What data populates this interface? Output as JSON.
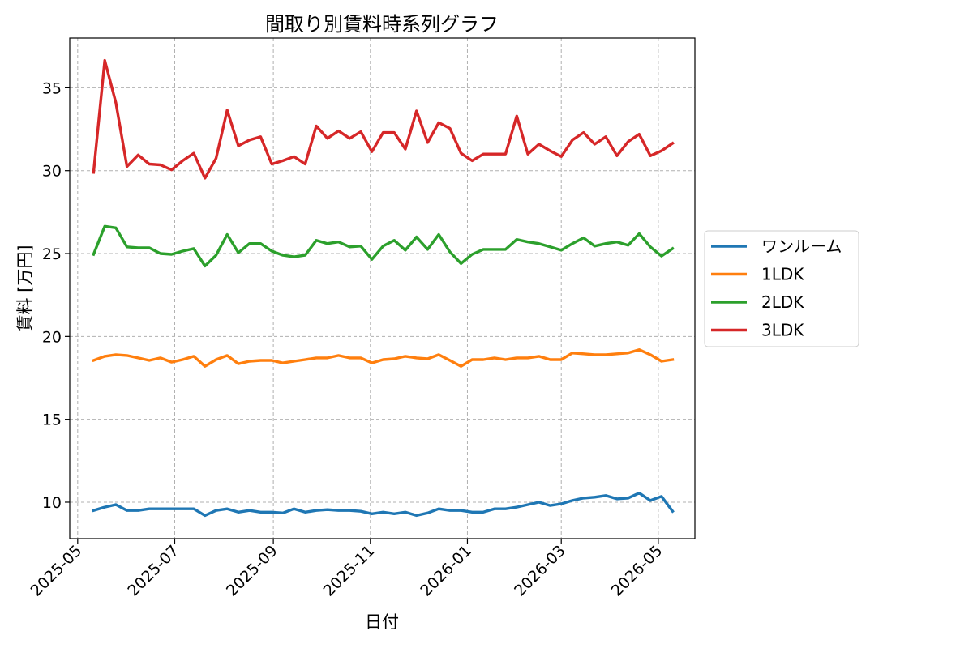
{
  "chart_data": {
    "type": "line",
    "title": "間取り別賃料時系列グラフ",
    "xlabel": "日付",
    "ylabel": "賃料 [万円]",
    "x_start": "2025-05-11",
    "x_step_days": 7,
    "xlim": [
      "2025-04-26",
      "2026-05-24"
    ],
    "ylim": [
      7.8,
      38.0
    ],
    "x_ticks": [
      "2025-05-01",
      "2025-07-01",
      "2025-09-01",
      "2025-11-01",
      "2026-01-01",
      "2026-03-01",
      "2026-05-01"
    ],
    "x_tick_labels": [
      "2025-05",
      "2025-07",
      "2025-09",
      "2025-11",
      "2026-01",
      "2026-03",
      "2026-05"
    ],
    "y_ticks": [
      10,
      15,
      20,
      25,
      30,
      35
    ],
    "y_tick_labels": [
      "10",
      "15",
      "20",
      "25",
      "30",
      "35"
    ],
    "grid": true,
    "legend_position": "right-outside",
    "series": [
      {
        "name": "ワンルーム",
        "color": "#1f77b4",
        "values": [
          9.5,
          9.7,
          9.85,
          9.5,
          9.5,
          9.6,
          9.6,
          9.6,
          9.6,
          9.6,
          9.2,
          9.5,
          9.6,
          9.4,
          9.5,
          9.4,
          9.4,
          9.35,
          9.6,
          9.4,
          9.5,
          9.55,
          9.5,
          9.5,
          9.45,
          9.3,
          9.4,
          9.3,
          9.4,
          9.2,
          9.35,
          9.6,
          9.5,
          9.5,
          9.4,
          9.4,
          9.6,
          9.6,
          9.7,
          9.85,
          10.0,
          9.8,
          9.9,
          10.1,
          10.25,
          10.3,
          10.4,
          10.2,
          10.25,
          10.55,
          10.1,
          10.35,
          9.45
        ]
      },
      {
        "name": "1LDK",
        "color": "#ff7f0e",
        "values": [
          18.55,
          18.8,
          18.9,
          18.85,
          18.7,
          18.55,
          18.7,
          18.45,
          18.6,
          18.8,
          18.2,
          18.6,
          18.85,
          18.35,
          18.5,
          18.55,
          18.55,
          18.4,
          18.5,
          18.6,
          18.7,
          18.7,
          18.85,
          18.7,
          18.7,
          18.4,
          18.6,
          18.65,
          18.8,
          18.7,
          18.65,
          18.9,
          18.55,
          18.2,
          18.6,
          18.6,
          18.7,
          18.6,
          18.7,
          18.7,
          18.8,
          18.6,
          18.6,
          19.0,
          18.95,
          18.9,
          18.9,
          18.95,
          19.0,
          19.2,
          18.9,
          18.5,
          18.6
        ]
      },
      {
        "name": "2LDK",
        "color": "#2ca02c",
        "values": [
          24.95,
          26.65,
          26.55,
          25.4,
          25.35,
          25.35,
          25.0,
          24.95,
          25.15,
          25.3,
          24.25,
          24.9,
          26.15,
          25.05,
          25.6,
          25.6,
          25.15,
          24.9,
          24.8,
          24.9,
          25.8,
          25.6,
          25.7,
          25.4,
          25.45,
          24.65,
          25.45,
          25.8,
          25.2,
          26.0,
          25.25,
          26.15,
          25.1,
          24.4,
          24.95,
          25.25,
          25.25,
          25.25,
          25.85,
          25.7,
          25.6,
          25.4,
          25.2,
          25.6,
          25.95,
          25.45,
          25.6,
          25.7,
          25.5,
          26.2,
          25.4,
          24.85,
          25.3
        ]
      },
      {
        "name": "3LDK",
        "color": "#d62728",
        "values": [
          29.9,
          36.65,
          34.1,
          30.25,
          30.95,
          30.4,
          30.35,
          30.05,
          30.6,
          31.05,
          29.55,
          30.75,
          33.65,
          31.5,
          31.85,
          32.05,
          30.4,
          30.6,
          30.85,
          30.4,
          32.7,
          31.95,
          32.4,
          31.95,
          32.35,
          31.15,
          32.3,
          32.3,
          31.3,
          33.6,
          31.7,
          32.9,
          32.55,
          31.05,
          30.6,
          31.0,
          31.0,
          31.0,
          33.3,
          31.0,
          31.6,
          31.2,
          30.85,
          31.85,
          32.3,
          31.6,
          32.05,
          30.9,
          31.75,
          32.2,
          30.9,
          31.2,
          31.65
        ]
      }
    ]
  }
}
